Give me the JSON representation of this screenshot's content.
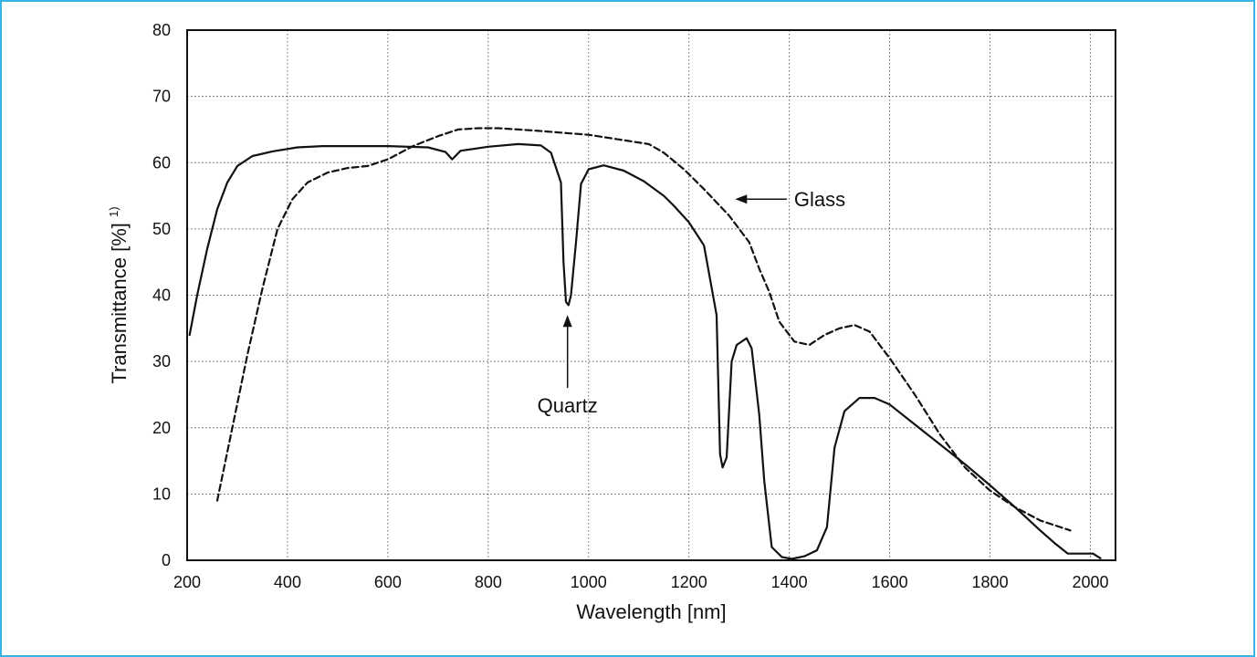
{
  "chart_data": {
    "type": "line",
    "xlabel": "Wavelength [nm]",
    "ylabel": "Transmittance [%]",
    "ylabel_superscript": "1)",
    "xlim": [
      200,
      2050
    ],
    "ylim": [
      0,
      80
    ],
    "xticks": [
      200,
      400,
      600,
      800,
      1000,
      1200,
      1400,
      1600,
      1800,
      2000
    ],
    "yticks": [
      0,
      10,
      20,
      30,
      40,
      50,
      60,
      70,
      80
    ],
    "grid": true,
    "series": [
      {
        "name": "Quartz",
        "style": "solid",
        "x": [
          205,
          220,
          240,
          260,
          280,
          300,
          330,
          370,
          420,
          470,
          520,
          600,
          680,
          715,
          728,
          745,
          800,
          860,
          905,
          925,
          945,
          950,
          955,
          960,
          965,
          975,
          985,
          1000,
          1030,
          1070,
          1110,
          1150,
          1170,
          1200,
          1230,
          1255,
          1262,
          1267,
          1275,
          1285,
          1295,
          1315,
          1325,
          1340,
          1350,
          1365,
          1385,
          1405,
          1430,
          1455,
          1475,
          1490,
          1510,
          1540,
          1570,
          1600,
          1650,
          1700,
          1750,
          1800,
          1850,
          1900,
          1930,
          1955,
          1980,
          2005,
          2020
        ],
        "y": [
          34,
          40,
          47,
          53,
          57,
          59.5,
          61,
          61.7,
          62.3,
          62.5,
          62.5,
          62.5,
          62.3,
          61.6,
          60.5,
          61.8,
          62.4,
          62.8,
          62.6,
          61.5,
          57,
          45,
          39,
          38.5,
          40,
          48,
          56.8,
          59,
          59.6,
          58.8,
          57.2,
          55,
          53.5,
          51,
          47.5,
          37,
          16,
          14,
          15.5,
          30,
          32.5,
          33.5,
          32,
          22,
          12,
          2,
          0.5,
          0.2,
          0.6,
          1.5,
          5,
          17,
          22.5,
          24.5,
          24.5,
          23.5,
          20.5,
          17.5,
          14.5,
          11.3,
          8,
          4.5,
          2.5,
          1,
          1,
          1,
          0.3
        ]
      },
      {
        "name": "Glass",
        "style": "dashed",
        "x": [
          260,
          290,
          320,
          350,
          380,
          410,
          440,
          480,
          520,
          560,
          600,
          650,
          700,
          740,
          780,
          820,
          860,
          900,
          950,
          1000,
          1060,
          1120,
          1150,
          1190,
          1230,
          1280,
          1320,
          1340,
          1360,
          1380,
          1410,
          1440,
          1470,
          1500,
          1530,
          1560,
          1600,
          1650,
          1700,
          1750,
          1800,
          1850,
          1900,
          1960
        ],
        "y": [
          9,
          20,
          31,
          41,
          50,
          54.5,
          57,
          58.5,
          59.2,
          59.5,
          60.5,
          62.5,
          64,
          65,
          65.2,
          65.2,
          65,
          64.8,
          64.5,
          64.2,
          63.5,
          62.8,
          61.5,
          59,
          56,
          52,
          48,
          44,
          40.5,
          36,
          33,
          32.5,
          34,
          35,
          35.5,
          34.5,
          30.5,
          25,
          19,
          14,
          10.5,
          8,
          6,
          4.5
        ]
      }
    ],
    "annotations": [
      {
        "text": "Glass",
        "points_to": "Glass"
      },
      {
        "text": "Quartz",
        "points_to": "Quartz"
      }
    ]
  }
}
